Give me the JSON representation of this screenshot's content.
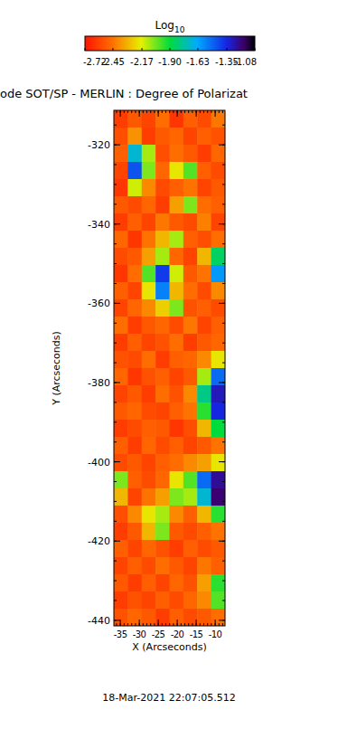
{
  "chart_data": {
    "type": "heatmap",
    "title": "ode SOT/SP - MERLIN : Degree of Polarizat",
    "x_label": "X (Arcseconds)",
    "y_label": "Y (Arcseconds)",
    "date": "18-Mar-2021 22:07:05.512",
    "colorbar_title": "Log",
    "colorbar_title_subscript": "10",
    "color_range": [
      -2.72,
      -1.08
    ],
    "color_ticks": [
      -2.72,
      -2.45,
      -2.17,
      {
        "value": -1.9,
        "label": "-1.90"
      },
      -1.63,
      -1.35,
      -1.08
    ],
    "xlim": [
      -36.7,
      -7.4
    ],
    "ylim": [
      -441.4,
      -311.3
    ],
    "xticks": [
      -35,
      -30,
      -25,
      -20,
      -15,
      -10
    ],
    "yticks": [
      -440,
      -420,
      -400,
      -380,
      -360,
      -340,
      -320
    ],
    "x": [
      -34.87,
      -31.21,
      -27.54,
      -23.88,
      -20.22,
      -16.56,
      -12.89,
      -9.23
    ],
    "y": [
      -313.47,
      -317.8,
      -322.14,
      -326.48,
      -330.81,
      -335.15,
      -339.49,
      -343.82,
      -348.16,
      -352.5,
      -356.83,
      -361.17,
      -365.51,
      -369.84,
      -374.18,
      -378.52,
      -382.85,
      -387.19,
      -391.53,
      -395.86,
      -400.2,
      -404.54,
      -408.87,
      -413.21,
      -417.55,
      -421.88,
      -426.22,
      -430.56,
      -434.89,
      -439.23
    ],
    "values": [
      [
        -2.6,
        -2.52,
        -2.58,
        -2.46,
        -2.62,
        -2.5,
        -2.56,
        -2.44
      ],
      [
        -2.55,
        -2.38,
        -2.6,
        -2.52,
        -2.48,
        -2.58,
        -2.5,
        -2.54
      ],
      [
        -2.5,
        -1.7,
        -2.1,
        -2.55,
        -2.46,
        -2.52,
        -2.6,
        -2.48
      ],
      [
        -2.58,
        -1.45,
        -2.05,
        -2.48,
        -2.2,
        -2.0,
        -2.5,
        -2.56
      ],
      [
        -2.62,
        -2.15,
        -2.4,
        -2.56,
        -2.5,
        -2.45,
        -2.58,
        -2.52
      ],
      [
        -2.52,
        -2.56,
        -2.48,
        -2.6,
        -2.35,
        -2.05,
        -2.46,
        -2.5
      ],
      [
        -2.6,
        -2.5,
        -2.58,
        -2.44,
        -2.52,
        -2.56,
        -2.42,
        -2.58
      ],
      [
        -2.48,
        -2.62,
        -2.45,
        -2.3,
        -2.1,
        -2.5,
        -2.55,
        -2.46
      ],
      [
        -2.56,
        -2.52,
        -2.35,
        -2.1,
        -2.48,
        -2.58,
        -2.3,
        -1.85
      ],
      [
        -2.62,
        -2.46,
        -2.0,
        -1.4,
        -2.15,
        -2.52,
        -2.45,
        -1.6
      ],
      [
        -2.5,
        -2.58,
        -2.2,
        -1.55,
        -2.3,
        -2.46,
        -2.56,
        -2.4
      ],
      [
        -2.58,
        -2.48,
        -2.4,
        -2.25,
        -2.05,
        -2.54,
        -2.5,
        -2.56
      ],
      [
        -2.46,
        -2.6,
        -2.52,
        -2.48,
        -2.56,
        -2.44,
        -2.58,
        -2.5
      ],
      [
        -2.6,
        -2.5,
        -2.58,
        -2.54,
        -2.46,
        -2.6,
        -2.52,
        -2.48
      ],
      [
        -2.54,
        -2.56,
        -2.46,
        -2.6,
        -2.5,
        -2.48,
        -2.4,
        -2.2
      ],
      [
        -2.48,
        -2.62,
        -2.54,
        -2.5,
        -2.58,
        -2.52,
        -2.1,
        -1.5
      ],
      [
        -2.58,
        -2.52,
        -2.6,
        -2.46,
        -2.54,
        -2.4,
        -1.8,
        -1.3
      ],
      [
        -2.52,
        -2.48,
        -2.56,
        -2.58,
        -2.5,
        -2.45,
        -1.95,
        -1.35
      ],
      [
        -2.6,
        -2.56,
        -2.5,
        -2.52,
        -2.62,
        -2.55,
        -2.3,
        -1.9
      ],
      [
        -2.5,
        -2.6,
        -2.48,
        -2.56,
        -2.5,
        -2.58,
        -2.52,
        -2.45
      ],
      [
        -2.56,
        -2.52,
        -2.58,
        -2.5,
        -2.46,
        -2.4,
        -2.35,
        -2.2
      ],
      [
        -2.05,
        -2.5,
        -2.56,
        -2.48,
        -2.2,
        -2.0,
        -1.5,
        -1.25
      ],
      [
        -2.3,
        -2.58,
        -2.45,
        -2.35,
        -2.05,
        -2.1,
        -1.7,
        -1.2
      ],
      [
        -2.55,
        -2.4,
        -2.2,
        -2.1,
        -2.4,
        -2.5,
        -2.3,
        -1.95
      ],
      [
        -2.6,
        -2.52,
        -2.3,
        -2.05,
        -2.52,
        -2.56,
        -2.5,
        -2.45
      ],
      [
        -2.5,
        -2.58,
        -2.48,
        -2.54,
        -2.6,
        -2.5,
        -2.56,
        -2.52
      ],
      [
        -2.58,
        -2.5,
        -2.56,
        -2.46,
        -2.52,
        -2.58,
        -2.44,
        -2.5
      ],
      [
        -2.52,
        -2.6,
        -2.5,
        -2.58,
        -2.48,
        -2.54,
        -2.35,
        -1.95
      ],
      [
        -2.6,
        -2.54,
        -2.58,
        -2.5,
        -2.56,
        -2.48,
        -2.4,
        -2.0
      ],
      [
        -2.54,
        -2.48,
        -2.52,
        -2.6,
        -2.5,
        -2.56,
        -2.52,
        -2.46
      ]
    ]
  }
}
